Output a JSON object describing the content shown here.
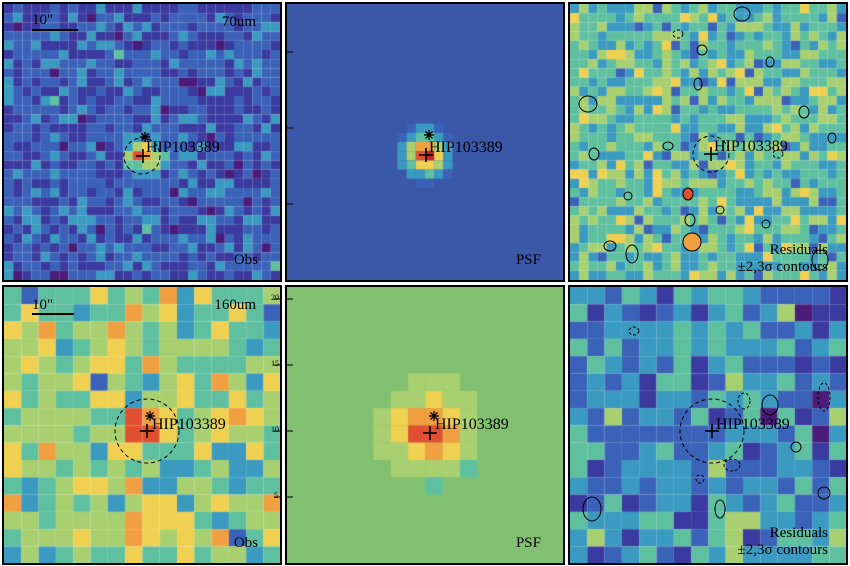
{
  "target_name": "HIP103389",
  "scale_label": "10\"",
  "rows": [
    {
      "band_label": "70um",
      "panels": [
        {
          "kind": "obs",
          "tag": "Obs"
        },
        {
          "kind": "psf",
          "tag": "PSF"
        },
        {
          "kind": "res",
          "tag_line1": "Residuals",
          "tag_line2": "±2,3σ contours"
        }
      ]
    },
    {
      "band_label": "160um",
      "panels": [
        {
          "kind": "obs",
          "tag": "Obs"
        },
        {
          "kind": "psf",
          "tag": "PSF"
        },
        {
          "kind": "res",
          "tag_line1": "Residuals",
          "tag_line2": "±2,3σ contours"
        }
      ]
    }
  ],
  "axis_ticks": {
    "row1_psf_left": [
      "30",
      "20",
      "10"
    ],
    "row2_obs_right": [
      "20",
      "15",
      "10",
      "5"
    ],
    "row2_psf_left": [
      "20",
      "15",
      "10",
      "5"
    ]
  },
  "colors": {
    "psf_bg_row1": "#3a57a8",
    "psf_bg_row2": "#80c070",
    "contour": "#000000",
    "marker": "#000000"
  },
  "colormap": [
    "#4b1b7a",
    "#3a3aa0",
    "#3a62b8",
    "#3a9ac0",
    "#5fc0a0",
    "#a8d070",
    "#f0d050",
    "#f0a040",
    "#e05030",
    "#c02020"
  ]
}
